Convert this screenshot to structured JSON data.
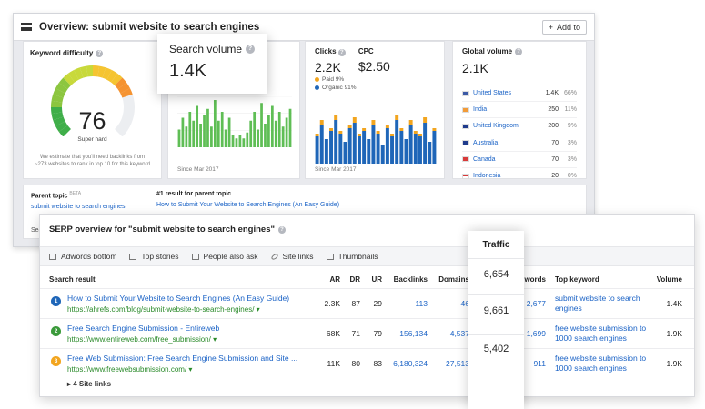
{
  "overview": {
    "title": "Overview: submit website to search engines",
    "add_button": "Add to",
    "keyword_difficulty": {
      "label": "Keyword difficulty",
      "value": "76",
      "level": "Super hard",
      "description": "We estimate that you'll need backlinks from ~273 websites to rank in top 10 for this keyword",
      "gauge_fraction": 0.76
    },
    "search_volume": {
      "label": "Search volume",
      "value": "1.4K",
      "since": "Since Mar 2017",
      "bars": [
        6,
        10,
        7,
        12,
        9,
        14,
        8,
        11,
        13,
        7,
        16,
        9,
        12,
        6,
        10,
        4,
        3,
        4,
        3,
        5,
        9,
        12,
        6,
        15,
        8,
        11,
        14,
        9,
        12,
        7,
        10,
        13
      ],
      "color": "#5fbe55"
    },
    "clicks": {
      "clicks_label": "Clicks",
      "clicks_value": "2.2K",
      "cpc_label": "CPC",
      "cpc_value": "$2.50",
      "paid_label": "Paid 9%",
      "organic_label": "Organic 91%",
      "since": "Since Mar 2017",
      "paid_color": "#f2a51f",
      "organic_color": "#1f66b8",
      "organic": [
        10,
        14,
        9,
        12,
        16,
        11,
        8,
        13,
        15,
        10,
        12,
        9,
        14,
        11,
        7,
        13,
        10,
        16,
        12,
        9,
        14,
        11,
        10,
        15,
        8,
        12
      ],
      "paid": [
        1,
        2,
        0,
        1,
        2,
        1,
        0,
        1,
        2,
        1,
        1,
        0,
        2,
        1,
        0,
        1,
        1,
        2,
        1,
        0,
        2,
        1,
        1,
        2,
        0,
        1
      ]
    },
    "global_volume": {
      "label": "Global volume",
      "value": "2.1K",
      "countries": [
        {
          "name": "United States",
          "volume": "1.4K",
          "pct": "66%",
          "flag_color": "#3c5aa6"
        },
        {
          "name": "India",
          "volume": "250",
          "pct": "11%",
          "flag_color": "#f29b38"
        },
        {
          "name": "United Kingdom",
          "volume": "200",
          "pct": "9%",
          "flag_color": "#1f3b8c"
        },
        {
          "name": "Australia",
          "volume": "70",
          "pct": "3%",
          "flag_color": "#1f3b8c"
        },
        {
          "name": "Canada",
          "volume": "70",
          "pct": "3%",
          "flag_color": "#d83a3a"
        },
        {
          "name": "Indonesia",
          "volume": "20",
          "pct": "0%",
          "flag_color": "#d83a3a"
        }
      ]
    },
    "parent_topic": {
      "label": "Parent topic",
      "beta": "BETA",
      "value": "submit website to search engines",
      "first_result_label": "#1 result for parent topic",
      "first_result": "How to Submit Your Website to Search Engines (An Easy Guide)",
      "truncated": "Sea"
    }
  },
  "serp": {
    "title": "SERP overview for \"submit website to search engines\"",
    "features": [
      "Adwords bottom",
      "Top stories",
      "People also ask",
      "Site links",
      "Thumbnails"
    ],
    "columns": {
      "result": "Search result",
      "ar": "AR",
      "dr": "DR",
      "ur": "UR",
      "backlinks": "Backlinks",
      "domains": "Domains",
      "keywords": "words",
      "top_keyword": "Top keyword",
      "volume": "Volume"
    },
    "rows": [
      {
        "num": "1",
        "color": "#1f66b8",
        "title": "How to Submit Your Website to Search Engines (An Easy Guide)",
        "url": "https://ahrefs.com/blog/submit-website-to-search-engines/ ▾",
        "ar": "2.3K",
        "dr": "87",
        "ur": "29",
        "backlinks": "113",
        "domains": "46",
        "keywords": "2,677",
        "top_keyword": "submit website to search engines",
        "volume": "1.4K"
      },
      {
        "num": "2",
        "color": "#3b9a3b",
        "title": "Free Search Engine Submission - Entireweb",
        "url": "https://www.entireweb.com/free_submission/ ▾",
        "ar": "68K",
        "dr": "71",
        "ur": "79",
        "backlinks": "156,134",
        "domains": "4,537",
        "keywords": "1,699",
        "top_keyword": "free website submission to 1000 search engines",
        "volume": "1.9K"
      },
      {
        "num": "3",
        "color": "#f2a51f",
        "title": "Free Web Submission: Free Search Engine Submission and Site ...",
        "url": "https://www.freewebsubmission.com/ ▾",
        "ar": "11K",
        "dr": "80",
        "ur": "83",
        "backlinks": "6,180,324",
        "domains": "27,513",
        "keywords": "911",
        "top_keyword": "free website submission to 1000 search engines",
        "volume": "1.9K"
      }
    ],
    "site_links": "▸ 4 Site links"
  },
  "traffic": {
    "title": "Traffic",
    "values": [
      "6,654",
      "9,661",
      "5,402"
    ]
  }
}
